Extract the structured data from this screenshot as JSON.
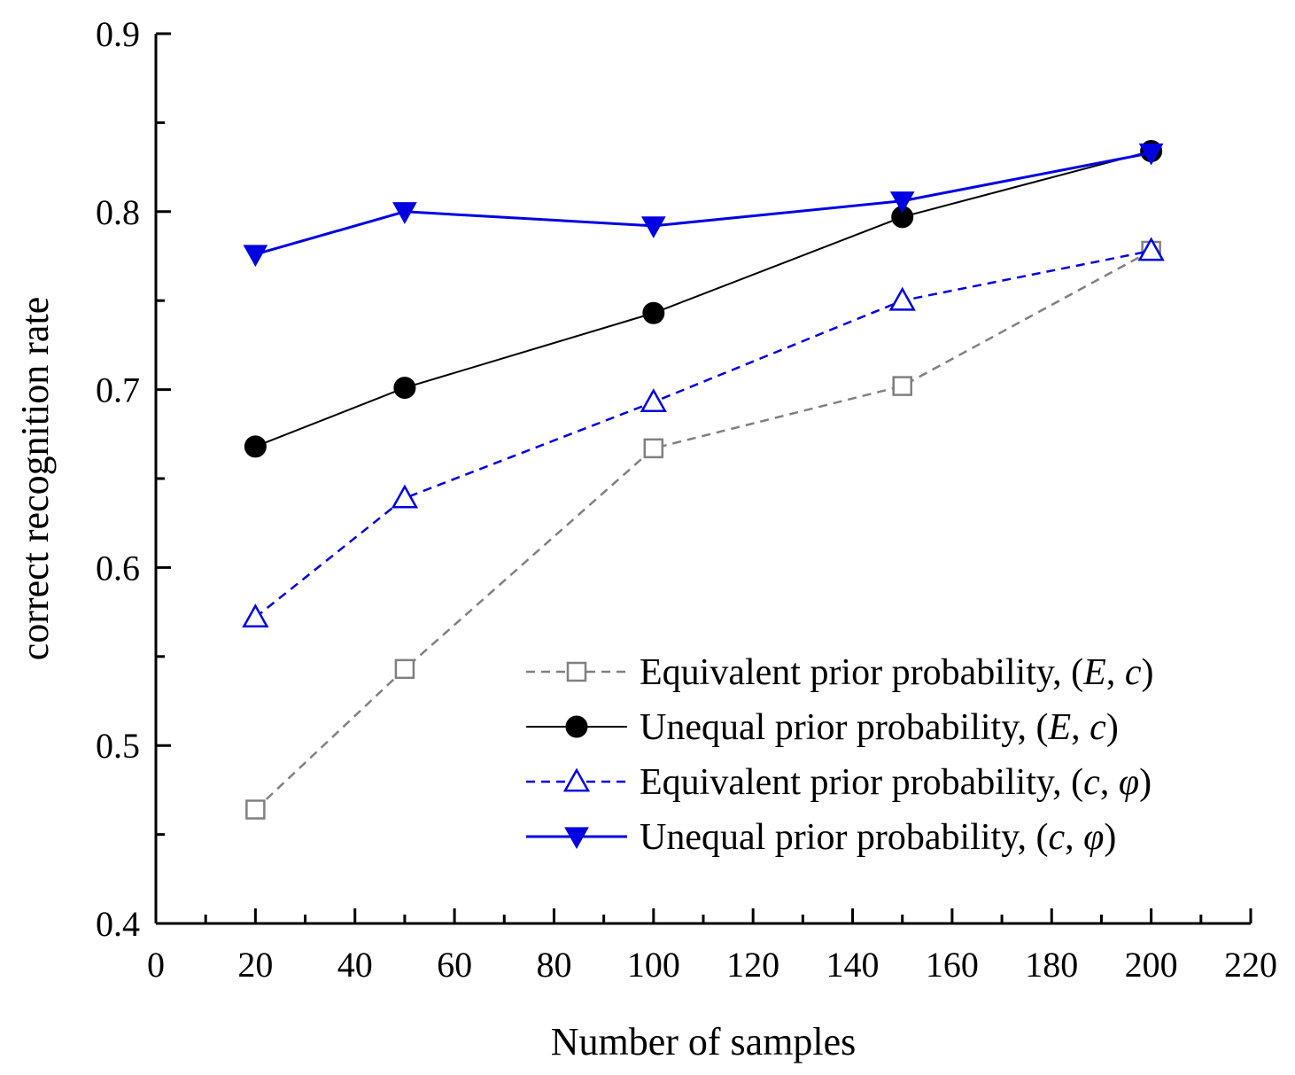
{
  "chart_data": {
    "type": "line",
    "title": "",
    "xlabel": "Number of samples",
    "ylabel": "correct recognition rate",
    "xlim": [
      0,
      220
    ],
    "ylim": [
      0.4,
      0.9
    ],
    "xticks": [
      0,
      20,
      40,
      60,
      80,
      100,
      120,
      140,
      160,
      180,
      200,
      220
    ],
    "xtick_labels": [
      "0",
      "20",
      "40",
      "60",
      "80",
      "100",
      "120",
      "140",
      "160",
      "180",
      "200",
      "220"
    ],
    "yticks": [
      0.4,
      0.5,
      0.6,
      0.7,
      0.8,
      0.9
    ],
    "ytick_labels": [
      "0.4",
      "0.5",
      "0.6",
      "0.7",
      "0.8",
      "0.9"
    ],
    "grid": false,
    "legend_position": "bottom-right",
    "x": [
      20,
      50,
      100,
      150,
      200
    ],
    "series": [
      {
        "name": "Equivalent prior probability, (E, c)",
        "label_prefix": "Equivalent prior probability, (",
        "label_var1": "E",
        "label_sep": ", ",
        "label_var2": "c",
        "label_suffix": ")",
        "values": [
          0.464,
          0.543,
          0.667,
          0.702,
          0.778
        ],
        "color": "#808080",
        "dashed": true,
        "marker": "square-open"
      },
      {
        "name": "Unequal prior probability, (E, c)",
        "label_prefix": "Unequal prior probability, (",
        "label_var1": "E",
        "label_sep": ", ",
        "label_var2": "c",
        "label_suffix": ")",
        "values": [
          0.668,
          0.701,
          0.743,
          0.797,
          0.834
        ],
        "color": "#000000",
        "dashed": false,
        "marker": "circle-filled"
      },
      {
        "name": "Equivalent prior probability, (c, φ)",
        "label_prefix": "Equivalent prior probability, (",
        "label_var1": "c",
        "label_sep": ", ",
        "label_var2": "φ",
        "label_suffix": ")",
        "values": [
          0.572,
          0.639,
          0.693,
          0.75,
          0.778
        ],
        "color": "#0000e0",
        "dashed": true,
        "marker": "triangle-up-open"
      },
      {
        "name": "Unequal prior probability, (c, φ)",
        "label_prefix": "Unequal prior probability, (",
        "label_var1": "c",
        "label_sep": ", ",
        "label_var2": "φ",
        "label_suffix": ")",
        "values": [
          0.776,
          0.8,
          0.792,
          0.806,
          0.833
        ],
        "color": "#0000e0",
        "dashed": false,
        "marker": "triangle-down-filled"
      }
    ]
  }
}
